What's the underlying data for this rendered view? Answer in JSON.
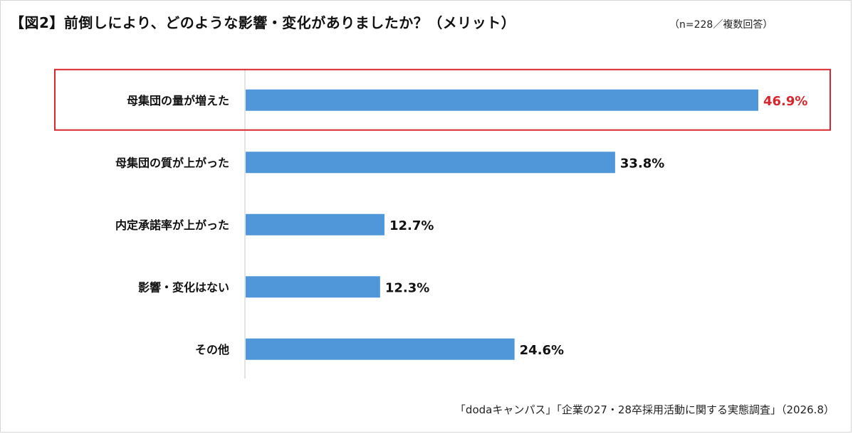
{
  "header": {
    "title": "【図2】前倒しにより、どのような影響・変化がありましたか？（メリット）",
    "subtitle": "（n=228／複数回答）"
  },
  "footer": {
    "source": "「dodaキャンパス」「企業の27・28卒採用活動に関する実態調査」（2026.8）"
  },
  "colors": {
    "bar": "#4f97d8",
    "highlight": "#d9262c",
    "axis": "#c8c8c8",
    "label": "#111111"
  },
  "chart_data": {
    "type": "bar",
    "orientation": "horizontal",
    "categories": [
      "母集団の量が増えた",
      "母集団の質が上がった",
      "内定承諾率が上がった",
      "影響・変化はない",
      "その他"
    ],
    "values": [
      46.9,
      33.8,
      12.7,
      12.3,
      24.6
    ],
    "value_labels": [
      "46.9%",
      "33.8%",
      "12.7%",
      "12.3%",
      "24.6%"
    ],
    "highlight_index": 0,
    "xlim": [
      0,
      50
    ],
    "grid": false,
    "legend": "none"
  }
}
